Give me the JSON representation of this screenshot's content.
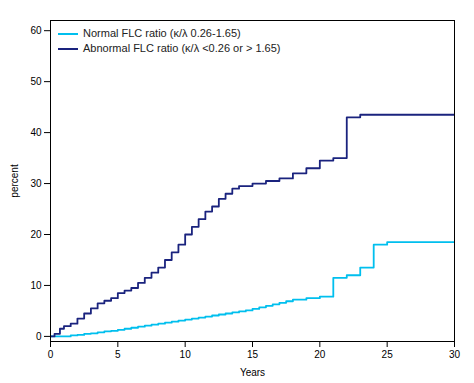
{
  "chart_data": {
    "type": "step",
    "xlabel": "Years",
    "ylabel": "percent",
    "xlim": [
      0,
      30
    ],
    "ylim": [
      -1,
      62
    ],
    "xticks": [
      0,
      5,
      10,
      15,
      20,
      25,
      30
    ],
    "yticks": [
      0,
      10,
      20,
      30,
      40,
      50,
      60
    ],
    "grid": false,
    "legend": "upper left",
    "series": [
      {
        "name": "Normal FLC ratio (κ/λ 0.26-1.65)",
        "color": "#00BFEE",
        "x": [
          0,
          0.3,
          0.7,
          1,
          1.5,
          2,
          2.5,
          3,
          3.5,
          4,
          4.5,
          5,
          5.5,
          6,
          6.5,
          7,
          7.5,
          8,
          8.5,
          9,
          9.5,
          10,
          10.5,
          11,
          11.5,
          12,
          12.5,
          13,
          13.5,
          14,
          14.5,
          15,
          15.5,
          16,
          16.5,
          17,
          17.5,
          18,
          19,
          20,
          21,
          22,
          23,
          24,
          25,
          26,
          27,
          28,
          29,
          30
        ],
        "values": [
          0,
          0,
          0,
          0,
          0.2,
          0.3,
          0.5,
          0.6,
          0.8,
          1.0,
          1.1,
          1.3,
          1.5,
          1.7,
          1.9,
          2.1,
          2.3,
          2.5,
          2.7,
          2.9,
          3.1,
          3.3,
          3.5,
          3.7,
          3.9,
          4.1,
          4.3,
          4.5,
          4.7,
          4.9,
          5.1,
          5.4,
          5.7,
          6.0,
          6.3,
          6.6,
          6.9,
          7.2,
          7.5,
          7.8,
          11.5,
          12.0,
          13.5,
          18.0,
          18.5,
          18.5,
          18.5,
          18.5,
          18.5,
          18.5
        ]
      },
      {
        "name": "Abnormal FLC ratio (κ/λ <0.26 or > 1.65)",
        "color": "#1A237E",
        "x": [
          0,
          0.3,
          0.7,
          1,
          1.5,
          2,
          2.5,
          3,
          3.5,
          4,
          4.5,
          5,
          5.5,
          6,
          6.5,
          7,
          7.5,
          8,
          8.5,
          9,
          9.5,
          10,
          10.5,
          11,
          11.5,
          12,
          12.5,
          13,
          13.5,
          14,
          14.5,
          15,
          16,
          17,
          18,
          19,
          20,
          21,
          22,
          23,
          24,
          25,
          26,
          27,
          28,
          29,
          30
        ],
        "values": [
          0,
          0.5,
          1.5,
          2,
          2.5,
          3.5,
          4.5,
          5.5,
          6.5,
          7.0,
          7.5,
          8.5,
          9.0,
          9.5,
          10.5,
          11.5,
          12.5,
          13.5,
          15.0,
          16.5,
          18.0,
          20.0,
          21.5,
          23.0,
          24.5,
          25.5,
          27.0,
          28.0,
          29.0,
          29.5,
          29.5,
          30.0,
          30.5,
          31.0,
          32.0,
          33.0,
          34.5,
          35.0,
          43.0,
          43.5,
          43.5,
          43.5,
          43.5,
          43.5,
          43.5,
          43.5,
          43.5
        ]
      }
    ]
  }
}
